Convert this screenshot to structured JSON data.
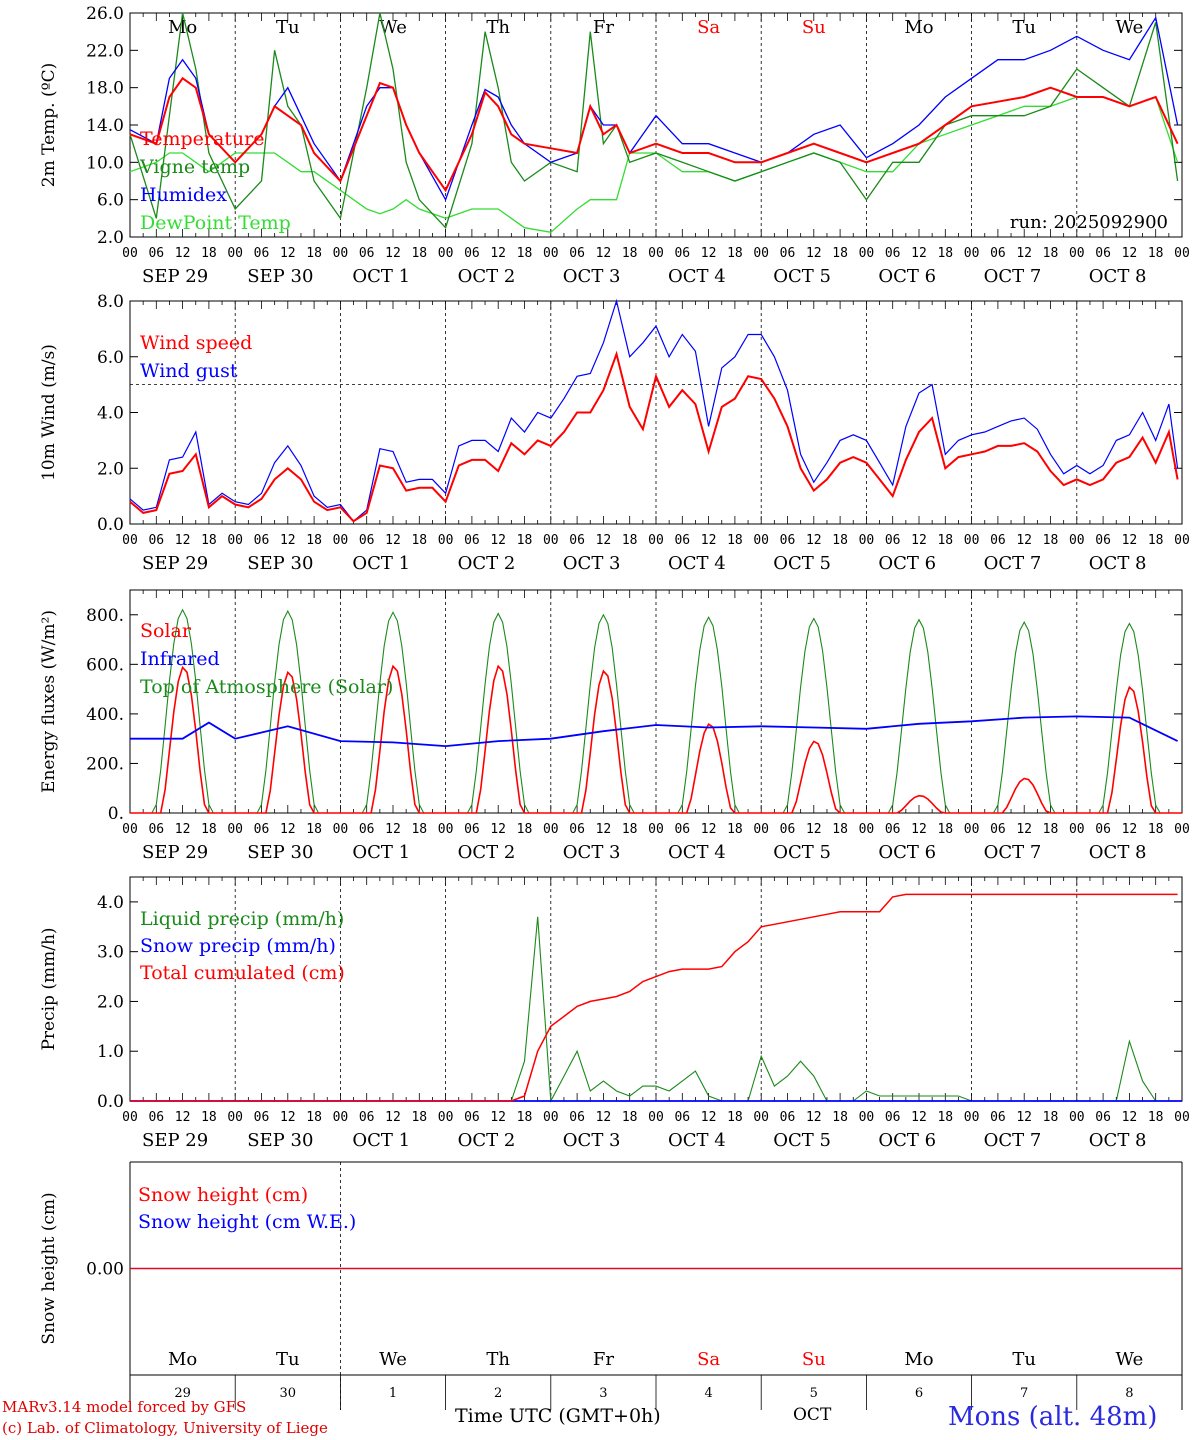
{
  "chart_data": [
    {
      "type": "line",
      "ylabel": "2m Temp. (ºC)",
      "ylim": [
        2,
        26
      ],
      "yticks": [
        "2.0",
        "6.0",
        "10.0",
        "14.0",
        "18.0",
        "22.0",
        "26.0"
      ],
      "annotation": "run: 2025092900",
      "x_hours": [
        0,
        6,
        9,
        12,
        15,
        18,
        24,
        30,
        33,
        36,
        39,
        42,
        48,
        54,
        57,
        60,
        63,
        66,
        72,
        78,
        81,
        84,
        87,
        90,
        96,
        102,
        105,
        108,
        111,
        114,
        120,
        126,
        132,
        138,
        144,
        150,
        156,
        162,
        168,
        174,
        180,
        186,
        192,
        198,
        204,
        210,
        216,
        222,
        228,
        234,
        239
      ],
      "series": [
        {
          "name": "Temperature",
          "color": "#ff0000",
          "values": [
            13,
            12,
            17,
            19,
            18,
            13,
            10,
            13,
            16,
            15,
            14,
            11,
            8,
            15,
            18.5,
            18,
            14,
            11,
            7,
            13,
            17.5,
            16,
            13,
            12,
            11.5,
            11,
            16,
            13,
            14,
            11,
            12,
            11,
            11,
            10,
            10,
            11,
            12,
            11,
            10,
            11,
            12,
            14,
            16,
            16.5,
            17,
            18,
            17,
            17,
            16,
            17,
            12
          ]
        },
        {
          "name": "Vigne temp",
          "color": "#1a8a1a",
          "values": [
            13,
            4,
            15,
            26,
            20,
            11,
            5,
            8,
            22,
            16,
            14,
            8,
            4,
            18,
            26,
            20,
            10,
            6,
            3,
            12,
            24,
            18,
            10,
            8,
            10,
            9,
            24,
            12,
            14,
            10,
            11,
            10,
            9,
            8,
            9,
            10,
            11,
            10,
            6,
            10,
            10,
            14,
            15,
            15,
            15,
            16,
            20,
            18,
            16,
            25,
            8
          ]
        },
        {
          "name": "Humidex",
          "color": "#0000ff",
          "values": [
            13.5,
            12,
            19,
            21,
            19,
            13,
            10,
            13,
            16,
            18,
            15,
            12,
            8,
            16,
            18,
            18,
            14,
            11,
            6,
            14,
            17.8,
            17,
            14,
            12,
            10,
            11,
            16,
            14,
            14,
            11,
            15,
            12,
            12,
            11,
            10,
            11,
            13,
            14,
            10.5,
            12,
            14,
            17,
            19,
            21,
            21,
            22,
            23.5,
            22,
            21,
            25.5,
            14
          ]
        },
        {
          "name": "DewPoint Temp",
          "color": "#33dd33",
          "values": [
            9,
            10,
            11,
            11,
            10,
            9,
            11,
            11,
            11,
            10,
            9,
            9,
            7,
            5,
            4.5,
            5,
            6,
            5,
            4,
            5,
            5,
            5,
            4,
            3,
            2.5,
            5,
            6,
            6,
            6,
            11,
            11,
            9,
            9,
            8,
            9,
            10,
            11,
            10,
            9,
            9,
            12,
            13,
            14,
            15,
            16,
            16,
            17,
            17,
            16,
            17,
            10
          ]
        }
      ]
    },
    {
      "type": "line",
      "ylabel": "10m Wind (m/s)",
      "ylim": [
        0,
        8
      ],
      "yticks": [
        "0.0",
        "2.0",
        "4.0",
        "6.0",
        "8.0"
      ],
      "reference_line": 5,
      "x_hours": [
        0,
        3,
        6,
        9,
        12,
        15,
        18,
        21,
        24,
        27,
        30,
        33,
        36,
        39,
        42,
        45,
        48,
        51,
        54,
        57,
        60,
        63,
        66,
        69,
        72,
        75,
        78,
        81,
        84,
        87,
        90,
        93,
        96,
        99,
        102,
        105,
        108,
        111,
        114,
        117,
        120,
        123,
        126,
        129,
        132,
        135,
        138,
        141,
        144,
        147,
        150,
        153,
        156,
        159,
        162,
        165,
        168,
        171,
        174,
        177,
        180,
        183,
        186,
        189,
        192,
        195,
        198,
        201,
        204,
        207,
        210,
        213,
        216,
        219,
        222,
        225,
        228,
        231,
        234,
        237,
        239
      ],
      "series": [
        {
          "name": "Wind speed",
          "color": "#ff0000",
          "values": [
            0.8,
            0.4,
            0.5,
            1.8,
            1.9,
            2.5,
            0.6,
            1.0,
            0.7,
            0.6,
            0.9,
            1.6,
            2.0,
            1.6,
            0.8,
            0.5,
            0.6,
            0.1,
            0.4,
            2.1,
            2.0,
            1.2,
            1.3,
            1.3,
            0.8,
            2.1,
            2.3,
            2.3,
            1.9,
            2.9,
            2.5,
            3.0,
            2.8,
            3.3,
            4.0,
            4.0,
            4.8,
            6.1,
            4.2,
            3.4,
            5.3,
            4.2,
            4.8,
            4.3,
            2.6,
            4.2,
            4.5,
            5.3,
            5.2,
            4.5,
            3.5,
            2.0,
            1.2,
            1.6,
            2.2,
            2.4,
            2.2,
            1.6,
            1.0,
            2.3,
            3.3,
            3.8,
            2.0,
            2.4,
            2.5,
            2.6,
            2.8,
            2.8,
            2.9,
            2.6,
            1.9,
            1.4,
            1.6,
            1.4,
            1.6,
            2.2,
            2.4,
            3.1,
            2.2,
            3.3,
            1.6
          ]
        },
        {
          "name": "Wind gust",
          "color": "#0000ff",
          "values": [
            0.9,
            0.5,
            0.6,
            2.3,
            2.4,
            3.3,
            0.7,
            1.1,
            0.8,
            0.7,
            1.1,
            2.2,
            2.8,
            2.1,
            1.0,
            0.6,
            0.7,
            0.1,
            0.5,
            2.7,
            2.6,
            1.5,
            1.6,
            1.6,
            1.1,
            2.8,
            3.0,
            3.0,
            2.6,
            3.8,
            3.3,
            4.0,
            3.8,
            4.5,
            5.3,
            5.4,
            6.5,
            8.0,
            6.0,
            6.5,
            7.1,
            6.0,
            6.8,
            6.2,
            3.5,
            5.6,
            6.0,
            6.8,
            6.8,
            6.0,
            4.8,
            2.5,
            1.5,
            2.2,
            3.0,
            3.2,
            3.0,
            2.2,
            1.4,
            3.5,
            4.7,
            5.0,
            2.5,
            3.0,
            3.2,
            3.3,
            3.5,
            3.7,
            3.8,
            3.4,
            2.5,
            1.8,
            2.1,
            1.8,
            2.1,
            3.0,
            3.2,
            4.0,
            3.0,
            4.3,
            2.0
          ]
        }
      ]
    },
    {
      "type": "line",
      "ylabel": "Energy fluxes (W/m²)",
      "ylim": [
        0,
        900
      ],
      "yticks": [
        "0.",
        "200.",
        "400.",
        "600.",
        "800."
      ],
      "series": [
        {
          "name": "Solar",
          "color": "#ff0000",
          "day_peaks": [
            590,
            570,
            595,
            595,
            575,
            360,
            290,
            70,
            140,
            510
          ]
        },
        {
          "name": "Infrared",
          "color": "#0000ff",
          "x_hours": [
            0,
            12,
            18,
            24,
            36,
            48,
            60,
            72,
            84,
            96,
            108,
            120,
            132,
            144,
            156,
            168,
            180,
            192,
            204,
            216,
            228,
            239
          ],
          "values": [
            300,
            300,
            365,
            300,
            350,
            290,
            285,
            270,
            290,
            300,
            330,
            355,
            345,
            350,
            345,
            340,
            360,
            370,
            385,
            390,
            385,
            290
          ]
        },
        {
          "name": "Top of Atmosphere (Solar)",
          "color": "#1a8a1a",
          "day_peaks": [
            820,
            815,
            810,
            805,
            800,
            790,
            785,
            780,
            770,
            765
          ]
        }
      ]
    },
    {
      "type": "line",
      "ylabel": "Precip (mm/h)",
      "ylim": [
        0,
        4.5
      ],
      "yticks": [
        "0.0",
        "1.0",
        "2.0",
        "3.0",
        "4.0"
      ],
      "x_hours": [
        0,
        84,
        87,
        90,
        93,
        96,
        99,
        102,
        105,
        108,
        111,
        114,
        117,
        120,
        123,
        126,
        129,
        132,
        135,
        138,
        141,
        144,
        147,
        150,
        153,
        156,
        159,
        162,
        165,
        168,
        171,
        174,
        177,
        180,
        183,
        186,
        189,
        192,
        195,
        198,
        201,
        204,
        207,
        210,
        213,
        216,
        219,
        222,
        225,
        228,
        231,
        234,
        237,
        239
      ],
      "series": [
        {
          "name": "Liquid precip (mm/h)",
          "color": "#1a8a1a",
          "values": [
            0,
            0,
            0,
            0.8,
            3.7,
            0,
            0.5,
            1.0,
            0.2,
            0.4,
            0.2,
            0.1,
            0.3,
            0.3,
            0.2,
            0.4,
            0.6,
            0.1,
            0,
            0,
            0,
            0.9,
            0.3,
            0.5,
            0.8,
            0.5,
            0,
            0,
            0,
            0.2,
            0.1,
            0.1,
            0.1,
            0.1,
            0.1,
            0.1,
            0.1,
            0,
            0,
            0,
            0,
            0,
            0,
            0,
            0,
            0,
            0,
            0,
            0,
            1.2,
            0.4,
            0,
            0,
            0
          ]
        },
        {
          "name": "Snow precip (mm/h)",
          "color": "#0000ff",
          "values": [
            0
          ]
        },
        {
          "name": "Total cumulated (cm)",
          "color": "#ff0000",
          "values": [
            0,
            0,
            0,
            0.1,
            1.0,
            1.5,
            1.7,
            1.9,
            2.0,
            2.05,
            2.1,
            2.2,
            2.4,
            2.5,
            2.6,
            2.65,
            2.65,
            2.65,
            2.7,
            3.0,
            3.2,
            3.5,
            3.55,
            3.6,
            3.65,
            3.7,
            3.75,
            3.8,
            3.8,
            3.8,
            3.8,
            4.1,
            4.15,
            4.15,
            4.15,
            4.15,
            4.15,
            4.15,
            4.15,
            4.15,
            4.15,
            4.15,
            4.15,
            4.15,
            4.15,
            4.15,
            4.15,
            4.15,
            4.15,
            4.15,
            4.15,
            4.15,
            4.15,
            4.15
          ]
        }
      ]
    },
    {
      "type": "line",
      "ylabel": "Snow height (cm)",
      "ylim": [
        -1,
        1
      ],
      "yticks": [
        "0.00"
      ],
      "series": [
        {
          "name": "Snow height (cm)",
          "color": "#ff0000",
          "values": [
            0,
            0
          ]
        },
        {
          "name": "Snow height (cm W.E.)",
          "color": "#0000ff",
          "values": [
            0,
            0
          ]
        }
      ]
    }
  ],
  "axes": {
    "hour_ticks": [
      "00",
      "06",
      "12",
      "18"
    ],
    "weekdays": [
      "Mo",
      "Tu",
      "We",
      "Th",
      "Fr",
      "Sa",
      "Su",
      "Mo",
      "Tu",
      "We"
    ],
    "weekend_color": "#ff0000",
    "date_labels": [
      "SEP 29",
      "SEP 30",
      "OCT  1",
      "OCT  2",
      "OCT  3",
      "OCT  4",
      "OCT  5",
      "OCT  6",
      "OCT  7",
      "OCT  8"
    ],
    "day_numbers": [
      "29",
      "30",
      "1",
      "2",
      "3",
      "4",
      "5",
      "6",
      "7",
      "8"
    ]
  },
  "footer": {
    "credit_line1": "MARv3.14 model forced by GFS",
    "credit_line2": "(c) Lab. of Climatology, University of Liege",
    "time_label": "Time UTC (GMT+0h)",
    "month_label": "OCT",
    "location": "Mons (alt. 48m)"
  }
}
